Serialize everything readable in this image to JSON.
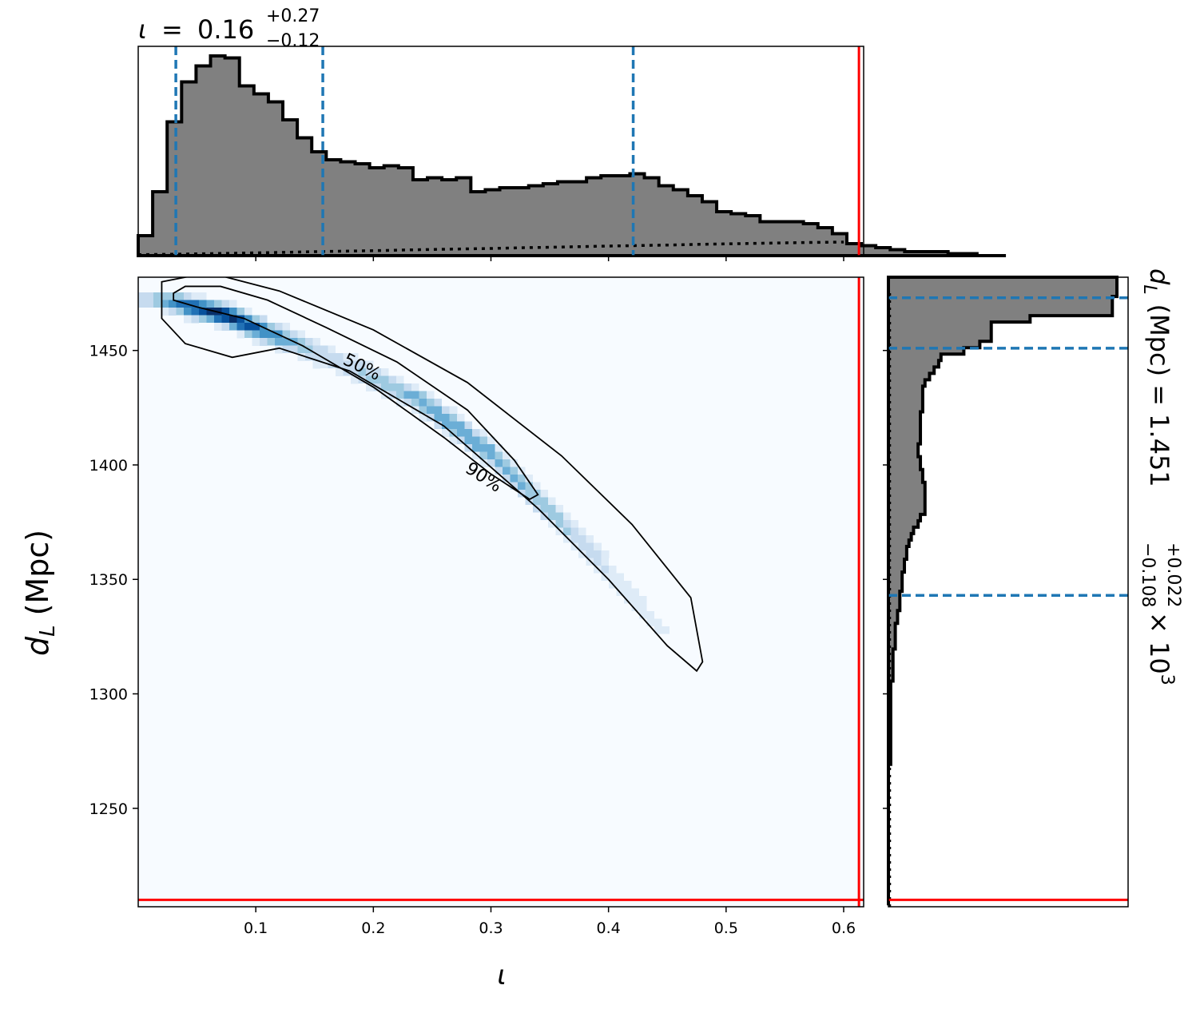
{
  "chart_data": {
    "type": "corner-plot",
    "colors": {
      "hist_fill": "#808080",
      "quantile_line": "#1f77b4",
      "truth_line": "#ff0000",
      "density_map": "Blues"
    },
    "iota": {
      "symbol": "ι",
      "median": "0.16",
      "plus": "+0.27",
      "minus": "−0.12",
      "quantiles": [
        0.032,
        0.157,
        0.421
      ],
      "truth": 0.613,
      "range": [
        0.0,
        0.617
      ],
      "ticks": [
        "0.1",
        "0.2",
        "0.3",
        "0.4",
        "0.5",
        "0.6"
      ],
      "tick_values": [
        0.1,
        0.2,
        0.3,
        0.4,
        0.5,
        0.6
      ],
      "hist_edges_start": 0.0,
      "hist_bin_width": 0.0123,
      "hist_values": [
        0.1,
        0.32,
        0.67,
        0.87,
        0.95,
        1.0,
        0.99,
        0.85,
        0.81,
        0.77,
        0.68,
        0.59,
        0.52,
        0.48,
        0.47,
        0.46,
        0.44,
        0.45,
        0.44,
        0.38,
        0.39,
        0.38,
        0.39,
        0.32,
        0.33,
        0.34,
        0.34,
        0.35,
        0.36,
        0.37,
        0.37,
        0.39,
        0.4,
        0.4,
        0.41,
        0.39,
        0.35,
        0.33,
        0.3,
        0.27,
        0.22,
        0.21,
        0.2,
        0.17,
        0.17,
        0.17,
        0.16,
        0.14,
        0.11,
        0.06,
        0.05,
        0.04,
        0.03,
        0.02,
        0.02,
        0.02,
        0.01,
        0.01,
        0.0,
        0.0
      ],
      "prior_values": [
        0.005,
        0.007,
        0.01,
        0.013,
        0.016,
        0.02,
        0.023,
        0.026,
        0.03,
        0.033,
        0.036,
        0.04,
        0.043,
        0.047,
        0.05,
        0.053,
        0.057,
        0.06,
        0.063,
        0.066,
        0.068
      ],
      "prior_x": [
        0.0,
        0.03,
        0.06,
        0.09,
        0.12,
        0.15,
        0.18,
        0.21,
        0.24,
        0.27,
        0.3,
        0.33,
        0.36,
        0.39,
        0.42,
        0.45,
        0.48,
        0.51,
        0.54,
        0.57,
        0.6
      ]
    },
    "dL": {
      "axis_label": "d",
      "axis_sub": "L",
      "axis_unit": "(Mpc)",
      "title_lhs": "d",
      "title_sub": "L",
      "title_unit": "(Mpc) =",
      "median": "1.451",
      "plus": "+0.022",
      "minus": "−0.108",
      "exponent_text": "× 10",
      "exponent_power": "3",
      "quantiles": [
        1343,
        1451,
        1473
      ],
      "truth": 1210,
      "range": [
        1207,
        1482
      ],
      "ticks": [
        "1250",
        "1300",
        "1350",
        "1400",
        "1450"
      ],
      "tick_values": [
        1250,
        1300,
        1350,
        1400,
        1450
      ],
      "hist_top": 1482,
      "hist_bin_height": 2.8,
      "hist_values": [
        1.0,
        1.0,
        1.0,
        0.98,
        0.98,
        0.98,
        0.62,
        0.45,
        0.45,
        0.45,
        0.4,
        0.33,
        0.23,
        0.22,
        0.2,
        0.18,
        0.16,
        0.15,
        0.15,
        0.15,
        0.15,
        0.14,
        0.14,
        0.14,
        0.14,
        0.14,
        0.13,
        0.13,
        0.14,
        0.14,
        0.15,
        0.15,
        0.16,
        0.16,
        0.16,
        0.16,
        0.16,
        0.14,
        0.13,
        0.11,
        0.1,
        0.09,
        0.08,
        0.08,
        0.07,
        0.07,
        0.06,
        0.06,
        0.06,
        0.05,
        0.05,
        0.05,
        0.04,
        0.04,
        0.03,
        0.03,
        0.03,
        0.03,
        0.02,
        0.02,
        0.02,
        0.02,
        0.02,
        0.01,
        0.01,
        0.01,
        0.01,
        0.01,
        0.01,
        0.01,
        0.01,
        0.01,
        0.01,
        0.01,
        0.01,
        0.01,
        0.0,
        0.0,
        0.0,
        0.0,
        0.0,
        0.0,
        0.0,
        0.0,
        0.0,
        0.0,
        0.0,
        0.0,
        0.0,
        0.0,
        0.0,
        0.0,
        0.0,
        0.0,
        0.0,
        0.0,
        0.0,
        0.0
      ]
    },
    "joint": {
      "ridge": [
        [
          0.02,
          1472
        ],
        [
          0.07,
          1466
        ],
        [
          0.12,
          1456
        ],
        [
          0.18,
          1443
        ],
        [
          0.24,
          1428
        ],
        [
          0.3,
          1405
        ],
        [
          0.35,
          1380
        ],
        [
          0.4,
          1354
        ],
        [
          0.45,
          1326
        ],
        [
          0.49,
          1300
        ]
      ],
      "contour_50": [
        [
          0.03,
          1475
        ],
        [
          0.04,
          1478
        ],
        [
          0.07,
          1478
        ],
        [
          0.11,
          1472
        ],
        [
          0.16,
          1460
        ],
        [
          0.22,
          1445
        ],
        [
          0.28,
          1424
        ],
        [
          0.32,
          1402
        ],
        [
          0.34,
          1387
        ],
        [
          0.333,
          1385
        ],
        [
          0.3,
          1396
        ],
        [
          0.26,
          1412
        ],
        [
          0.2,
          1434
        ],
        [
          0.14,
          1452
        ],
        [
          0.09,
          1464
        ],
        [
          0.05,
          1469
        ],
        [
          0.03,
          1472
        ]
      ],
      "contour_90": [
        [
          0.02,
          1480
        ],
        [
          0.06,
          1484
        ],
        [
          0.12,
          1476
        ],
        [
          0.2,
          1459
        ],
        [
          0.28,
          1436
        ],
        [
          0.36,
          1404
        ],
        [
          0.42,
          1374
        ],
        [
          0.47,
          1342
        ],
        [
          0.48,
          1314
        ],
        [
          0.475,
          1310
        ],
        [
          0.45,
          1321
        ],
        [
          0.4,
          1350
        ],
        [
          0.34,
          1381
        ],
        [
          0.26,
          1417
        ],
        [
          0.18,
          1441
        ],
        [
          0.12,
          1451
        ],
        [
          0.08,
          1447
        ],
        [
          0.04,
          1453
        ],
        [
          0.02,
          1464
        ]
      ],
      "contour_labels": [
        "50%",
        "90%"
      ]
    }
  }
}
